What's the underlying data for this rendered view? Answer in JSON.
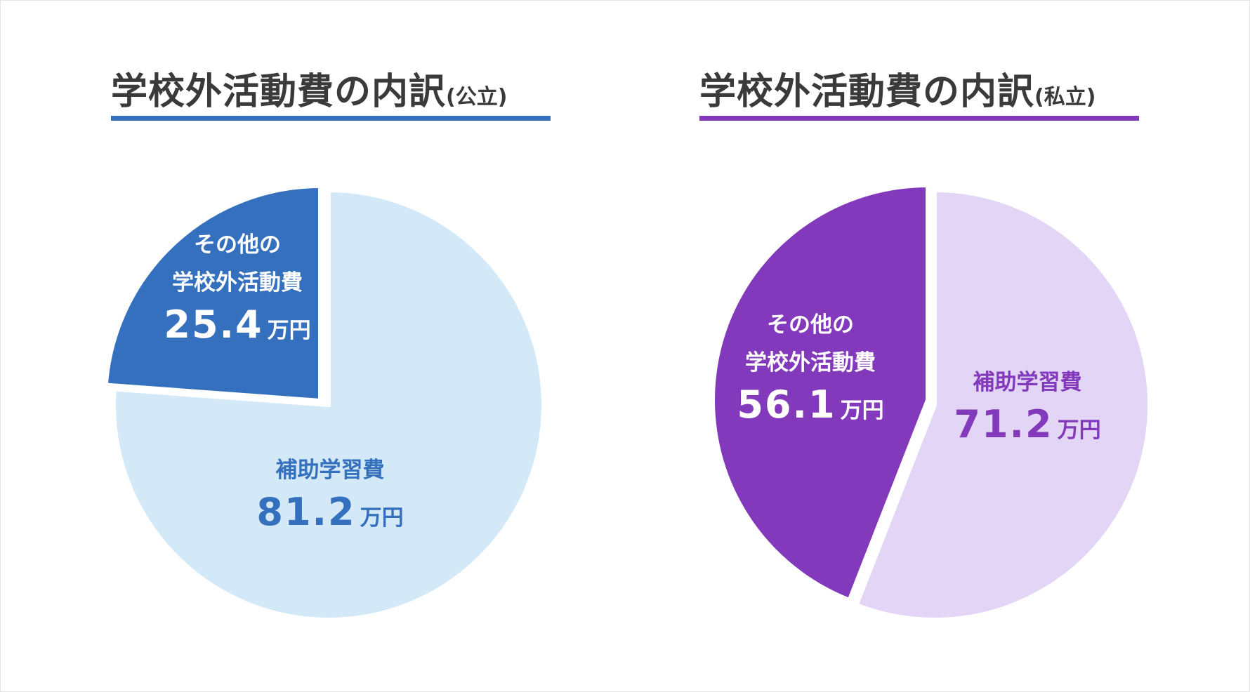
{
  "colors": {
    "public_accent": "#3470bd",
    "public_light": "#d4e9f7",
    "private_accent": "#8239bb",
    "private_light": "#e3d5f5",
    "title_text": "#3a3a3a"
  },
  "chart_data": [
    {
      "type": "pie",
      "title": "学校外活動費の内訳",
      "subtitle": "(公立)",
      "unit": "万円",
      "slices": [
        {
          "label": "補助学習費",
          "value": 81.2,
          "color": "#d4e9f7",
          "text_color": "#3470bd",
          "exploded": false
        },
        {
          "label": "その他の学校外活動費",
          "label_lines": [
            "その他の",
            "学校外活動費"
          ],
          "value": 25.4,
          "color": "#3470bd",
          "text_color": "#ffffff",
          "exploded": true
        }
      ]
    },
    {
      "type": "pie",
      "title": "学校外活動費の内訳",
      "subtitle": "(私立)",
      "unit": "万円",
      "slices": [
        {
          "label": "補助学習費",
          "value": 71.2,
          "color": "#e3d5f5",
          "text_color": "#8239bb",
          "exploded": false
        },
        {
          "label": "その他の学校外活動費",
          "label_lines": [
            "その他の",
            "学校外活動費"
          ],
          "value": 56.1,
          "color": "#8239bb",
          "text_color": "#ffffff",
          "exploded": true
        }
      ]
    }
  ]
}
